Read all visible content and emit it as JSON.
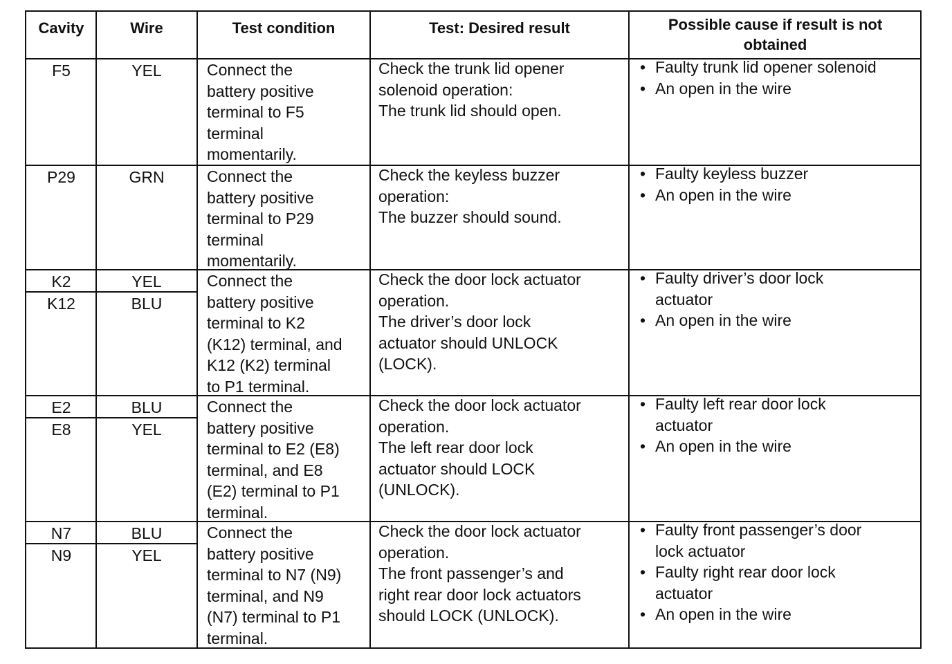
{
  "headers": {
    "cavity": "Cavity",
    "wire": "Wire",
    "test_condition": "Test condition",
    "desired_result": "Test: Desired result",
    "possible_cause": "Possible cause if result is not\nobtained"
  },
  "bullet_symbol": "•",
  "rows": [
    {
      "pins": [
        {
          "cavity": "F5",
          "wire": "YEL"
        }
      ],
      "test_condition": "Connect the\nbattery positive\nterminal to F5\nterminal\nmomentarily.",
      "desired_result": "Check the trunk lid opener\nsolenoid operation:\nThe trunk lid should open.",
      "causes": [
        "Faulty trunk lid opener solenoid",
        "An open in the wire"
      ]
    },
    {
      "pins": [
        {
          "cavity": "P29",
          "wire": "GRN"
        }
      ],
      "test_condition": "Connect the\nbattery positive\nterminal to P29\nterminal\nmomentarily.",
      "desired_result": "Check the keyless buzzer\noperation:\nThe buzzer should sound.",
      "causes": [
        "Faulty keyless buzzer",
        "An open in the wire"
      ]
    },
    {
      "pins": [
        {
          "cavity": "K2",
          "wire": "YEL"
        },
        {
          "cavity": "K12",
          "wire": "BLU"
        }
      ],
      "test_condition": "Connect the\nbattery positive\nterminal to K2\n(K12) terminal, and\nK12 (K2) terminal\nto P1 terminal.",
      "desired_result": "Check the door lock actuator\noperation.\nThe driver’s door lock\nactuator should UNLOCK\n(LOCK).",
      "causes": [
        "Faulty driver’s door lock\nactuator",
        "An open in the wire"
      ]
    },
    {
      "pins": [
        {
          "cavity": "E2",
          "wire": "BLU"
        },
        {
          "cavity": "E8",
          "wire": "YEL"
        }
      ],
      "test_condition": "Connect the\nbattery positive\nterminal to E2 (E8)\nterminal, and E8\n(E2) terminal to P1\nterminal.",
      "desired_result": "Check the door lock actuator\noperation.\nThe left rear door lock\nactuator should LOCK\n(UNLOCK).",
      "causes": [
        "Faulty left rear door lock\nactuator",
        "An open in the wire"
      ]
    },
    {
      "pins": [
        {
          "cavity": "N7",
          "wire": "BLU"
        },
        {
          "cavity": "N9",
          "wire": "YEL"
        }
      ],
      "test_condition": "Connect the\nbattery positive\nterminal to N7 (N9)\nterminal, and N9\n(N7) terminal to P1\nterminal.",
      "desired_result": "Check the door lock actuator\noperation.\nThe front passenger’s and\nright rear door lock actuators\nshould LOCK (UNLOCK).",
      "causes": [
        "Faulty front passenger’s door\nlock actuator",
        "Faulty right rear door lock\nactuator",
        "An open in the wire"
      ]
    }
  ]
}
